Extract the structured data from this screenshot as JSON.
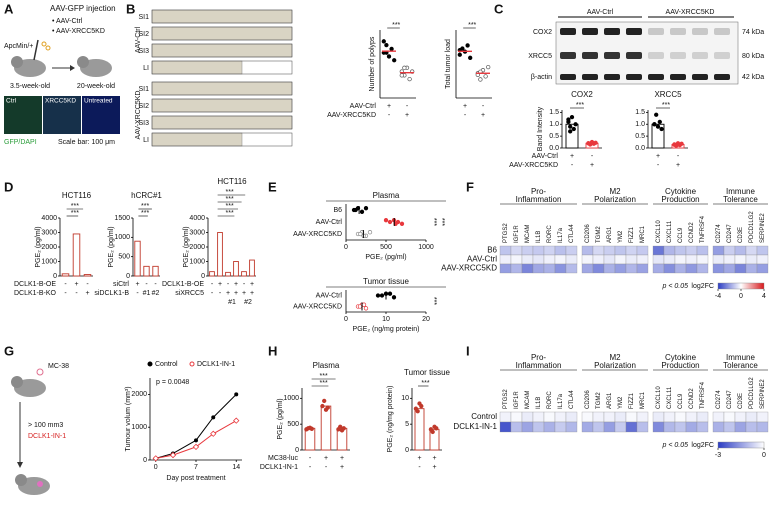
{
  "panel_labels": [
    "A",
    "B",
    "C",
    "D",
    "E",
    "F",
    "G",
    "H",
    "I"
  ],
  "panel_a": {
    "title": "AAV-GFP injection",
    "groups": [
      "• AAV-Ctrl",
      "• AAV-XRCC5KD"
    ],
    "genotype": "ApcMin/+",
    "ages": [
      "3.5-week-old",
      "20-week-old"
    ],
    "images": [
      "Ctrl",
      "XRCC5KD",
      "Untreated"
    ],
    "stain": "GFP/DAPI",
    "scale_bar": "Scale bar: 100 μm"
  },
  "panel_b": {
    "groups": [
      "AAV-Ctrl",
      "AAV-XRCC5KD"
    ],
    "segments": [
      "SI1",
      "SI2",
      "SI3",
      "LI"
    ]
  },
  "panel_c": {
    "groups": [
      "AAV-Ctrl",
      "AAV-XRCC5KD"
    ],
    "bands": [
      {
        "name": "COX2",
        "size": "74 kDa"
      },
      {
        "name": "XRCC5",
        "size": "80 kDa"
      },
      {
        "name": "β-actin",
        "size": "42 kDa"
      }
    ]
  },
  "panel_g": {
    "cell_line": "MC-38",
    "threshold": "> 100 mm3",
    "treatment": "DCLK1-IN-1"
  },
  "chart_data": [
    {
      "type": "dot",
      "ylabel": "Number of polyps",
      "ylim": [
        0,
        18
      ],
      "points": [
        [
          12,
          14,
          11,
          13,
          10,
          15,
          12
        ],
        [
          7,
          6,
          8,
          5,
          7,
          6,
          8
        ]
      ],
      "means": [
        12.4,
        6.7
      ],
      "colors": [
        "#000000",
        "#555555"
      ],
      "hollow": [
        false,
        true
      ],
      "mean_color": "#e8383d",
      "significance": [
        "***"
      ],
      "conditions": [
        {
          "name": "AAV-Ctrl",
          "marks": [
            "+",
            "-"
          ]
        },
        {
          "name": "AAV-XRCC5KD",
          "marks": [
            "-",
            "+"
          ]
        }
      ]
    },
    {
      "type": "dot",
      "ylabel": "Total tumor load",
      "ylim": [
        0,
        220
      ],
      "points": [
        [
          140,
          160,
          150,
          170,
          130,
          155
        ],
        [
          80,
          60,
          90,
          70,
          100,
          75,
          85
        ]
      ],
      "means": [
        151,
        80
      ],
      "colors": [
        "#000000",
        "#555555"
      ],
      "hollow": [
        false,
        true
      ],
      "mean_color": "#e8383d",
      "significance": [
        "***"
      ],
      "conditions": [
        {
          "marks": [
            "+",
            "-"
          ]
        },
        {
          "marks": [
            "-",
            "+"
          ]
        }
      ]
    },
    {
      "type": "bar",
      "title": "COX2",
      "ylabel": "Band Intensity",
      "ylim": [
        0,
        1.6
      ],
      "yticks": [
        {
          "value": 0,
          "label": "0.0"
        },
        0.5,
        {
          "value": 1,
          "label": "1.0"
        },
        1.5
      ],
      "values": [
        1.0,
        0.2
      ],
      "points": [
        [
          1.1,
          0.9,
          1.3,
          0.8,
          1.0,
          1.2,
          0.7
        ],
        [
          0.2,
          0.15,
          0.25,
          0.18,
          0.22,
          0.2
        ]
      ],
      "colors": [
        "#000000",
        "#e8383d"
      ],
      "bar_fill": "#ffffff",
      "significance": [
        "***"
      ],
      "conditions": [
        {
          "name": "AAV-Ctrl",
          "marks": [
            "+",
            "-"
          ]
        },
        {
          "name": "AAV-XRCC5KD",
          "marks": [
            "-",
            "+"
          ]
        }
      ]
    },
    {
      "type": "bar",
      "title": "XRCC5",
      "ylim": [
        0,
        1.6
      ],
      "yticks": [
        {
          "value": 0,
          "label": "0.0"
        },
        0.5,
        {
          "value": 1,
          "label": "1.0"
        },
        1.5
      ],
      "values": [
        1.0,
        0.15
      ],
      "points": [
        [
          1.0,
          1.4,
          0.9,
          1.1,
          0.8,
          1.0
        ],
        [
          0.15,
          0.1,
          0.2,
          0.12,
          0.18,
          0.14
        ]
      ],
      "colors": [
        "#000000",
        "#e8383d"
      ],
      "bar_fill": "#ffffff",
      "significance": [
        "***"
      ],
      "conditions": [
        {
          "marks": [
            "+",
            "-"
          ]
        },
        {
          "marks": [
            "-",
            "+"
          ]
        }
      ]
    },
    {
      "type": "bar",
      "title": "HCT116",
      "ylabel": "PGE₂ (pg/ml)",
      "ylim": [
        0,
        4000
      ],
      "yticks": [
        0,
        1000,
        2000,
        3000,
        4000
      ],
      "values": [
        150,
        2900,
        100
      ],
      "colors": [
        "#c0392b",
        "#c0392b",
        "#c0392b"
      ],
      "bar_fill": "#ffffff",
      "significance": [
        "***",
        "***"
      ],
      "conditions": [
        {
          "name": "DCLK1-B-OE",
          "marks": [
            "-",
            "+",
            "-"
          ]
        },
        {
          "name": "DCLK1-B-KO",
          "marks": [
            "-",
            "-",
            "+"
          ]
        }
      ]
    },
    {
      "type": "bar",
      "title": "hCRC#1",
      "ylabel": "PGE₂ (pg/ml)",
      "ylim": [
        0,
        1500
      ],
      "yticks": [
        0,
        500,
        1000,
        1500
      ],
      "values": [
        900,
        250,
        250
      ],
      "colors": [
        "#c0392b",
        "#c0392b",
        "#c0392b"
      ],
      "bar_fill": "#ffffff",
      "significance": [
        "***",
        "***"
      ],
      "conditions": [
        {
          "name": "siCtrl",
          "marks": [
            "+",
            "-",
            "-"
          ]
        },
        {
          "name": "siDCLK1-B",
          "marks": [
            "-",
            "#1",
            "#2"
          ]
        }
      ]
    },
    {
      "type": "bar",
      "title": "HCT116",
      "ylabel": "PGE₂ (pg/ml)",
      "ylim": [
        0,
        4000
      ],
      "yticks": [
        0,
        1000,
        2000,
        3000,
        4000
      ],
      "values": [
        300,
        3000,
        250,
        1000,
        300,
        1100
      ],
      "colors": [
        "#c0392b",
        "#c0392b",
        "#c0392b",
        "#c0392b",
        "#c0392b",
        "#c0392b"
      ],
      "bar_fill": "#ffffff",
      "significance": [
        "***",
        "***",
        "***",
        "***"
      ],
      "conditions": [
        {
          "name": "DCLK1-B-OE",
          "marks": [
            "-",
            "+",
            "-",
            "+",
            "-",
            "+"
          ]
        },
        {
          "name": "siXRCC5",
          "marks": [
            "-",
            "-",
            "+",
            "+",
            "+",
            "+"
          ]
        }
      ],
      "sublabels": [
        "#1",
        "#2"
      ]
    },
    {
      "type": "hdot",
      "title": "Plasma",
      "categories": [
        "B6",
        "AAV-Ctrl",
        "AAV-XRCC5KD"
      ],
      "xlabel": "PGE₂ (pg/ml)",
      "xlim": [
        0,
        1000
      ],
      "xticks": [
        0,
        500,
        1000
      ],
      "points": [
        [
          150,
          100,
          200,
          250,
          120
        ],
        [
          600,
          550,
          700,
          500,
          650,
          620
        ],
        [
          200,
          150,
          250,
          300,
          180,
          220
        ]
      ],
      "means": [
        164,
        603,
        217
      ],
      "colors": [
        "#000000",
        "#e8383d",
        "#888888"
      ],
      "hollow": [
        false,
        false,
        true
      ],
      "significance": [
        "***",
        "***"
      ]
    },
    {
      "type": "hdot",
      "title": "Tumor tissue",
      "categories": [
        "AAV-Ctrl",
        "AAV-XRCC5KD"
      ],
      "xlabel": "PGE₂ (ng/mg protein)",
      "xlim": [
        0,
        20
      ],
      "xticks": [
        0,
        10,
        20
      ],
      "points": [
        [
          10,
          9,
          12,
          11,
          8
        ],
        [
          4,
          3,
          5,
          4.5,
          3.5
        ]
      ],
      "means": [
        10,
        4
      ],
      "colors": [
        "#000000",
        "#e8383d"
      ],
      "hollow": [
        false,
        true
      ],
      "significance": [
        "***"
      ]
    },
    {
      "type": "heatmap",
      "rows": [
        "B6",
        "AAV-Ctrl",
        "AAV-XRCC5KD"
      ],
      "columns": [
        {
          "name": [
            "Pro-",
            "Inflammation"
          ],
          "genes": [
            "PTGS2",
            "IGF1R",
            "MCAM",
            "IL1B",
            "RORC",
            "IL17a",
            "CTLA4"
          ]
        },
        {
          "name": [
            "M2",
            "Polarization"
          ],
          "genes": [
            "CD206",
            "TGM2",
            "ARG1",
            "YM2",
            "FIZZ1",
            "MRC1"
          ]
        },
        {
          "name": [
            "Cytokine",
            "Production"
          ],
          "genes": [
            "CXCL10",
            "CXCL11",
            "CCL9",
            "CCND2",
            "TNFRSF4"
          ]
        },
        {
          "name": [
            "Immune",
            "Tolerance"
          ],
          "genes": [
            "CD274",
            "CD247",
            "CD3E",
            "PDCD1LG2",
            "SERPINE2"
          ]
        }
      ],
      "values": [
        [
          -1.2,
          -0.8,
          -1.0,
          -1.1,
          -0.9,
          -1.3,
          -1.0,
          -1.4,
          -0.8,
          -1.0,
          -1.2,
          -0.9,
          -1.1,
          -2.8,
          -1.5,
          -1.2,
          -1.0,
          -1.3,
          -2.0,
          -1.0,
          -1.4,
          -0.8,
          -1.2
        ],
        [
          -0.3,
          -0.2,
          -0.4,
          -0.5,
          -0.3,
          -0.2,
          -0.4,
          -0.2,
          -0.3,
          -0.5,
          -0.2,
          -0.4,
          -0.3,
          -0.5,
          -0.4,
          -0.2,
          -0.3,
          -0.2,
          -0.4,
          -0.3,
          -0.2,
          -0.4,
          -0.3
        ],
        [
          -2.0,
          -1.5,
          -2.5,
          -1.8,
          -1.6,
          -2.2,
          -1.4,
          -1.8,
          -2.4,
          -1.6,
          -2.0,
          -1.5,
          -1.9,
          -1.7,
          -2.3,
          -1.6,
          -2.1,
          -1.5,
          -2.2,
          -1.8,
          -2.5,
          -1.6,
          -2.0
        ]
      ],
      "zlim": [
        -4,
        4
      ],
      "zticks": [
        -4,
        0,
        4
      ],
      "colors": [
        "#2b3cc4",
        "#ffffff",
        "#d7191c"
      ],
      "note": "p < 0.05",
      "legend_title": "log2FC"
    },
    {
      "type": "line",
      "ylabel": "Tumour volum (mm³)",
      "xlabel": "Day post treatment",
      "x": [
        0,
        3,
        7,
        10,
        14
      ],
      "xlim": [
        -1,
        15
      ],
      "xticks": [
        0,
        7,
        14
      ],
      "ylim": [
        0,
        2500
      ],
      "yticks": [
        0,
        1000,
        2000
      ],
      "annotation": "p = 0.0048",
      "series": [
        {
          "name": "Control",
          "color": "#000000",
          "values": [
            50,
            200,
            600,
            1300,
            2000
          ]
        },
        {
          "name": "DCLK1-IN-1",
          "color": "#e8383d",
          "values": [
            50,
            150,
            400,
            800,
            1200
          ]
        }
      ]
    },
    {
      "type": "bar",
      "title": "Plasma",
      "ylabel": "PGE₂ (pg/ml)",
      "ylim": [
        0,
        1200
      ],
      "yticks": [
        0,
        500,
        1000
      ],
      "values": [
        420,
        850,
        420
      ],
      "points": [
        [
          400,
          420,
          430,
          410
        ],
        [
          850,
          950,
          780,
          820
        ],
        [
          400,
          450,
          380,
          420
        ]
      ],
      "colors": [
        "#c0392b",
        "#c0392b",
        "#c0392b"
      ],
      "bar_fill": "#ffffff",
      "significance": [
        "***",
        "***"
      ],
      "conditions": [
        {
          "name": "MC38-luc",
          "marks": [
            "-",
            "+",
            "+"
          ]
        },
        {
          "name": "DCLK1-IN-1",
          "marks": [
            "-",
            "-",
            "+"
          ]
        }
      ]
    },
    {
      "type": "bar",
      "title": "Tumor tissue",
      "ylabel": "PGE₂ (ng/mg protein)",
      "ylim": [
        0,
        12
      ],
      "yticks": [
        0,
        5,
        10
      ],
      "values": [
        8,
        4
      ],
      "points": [
        [
          8,
          7.5,
          9,
          8.5
        ],
        [
          4,
          3.5,
          4.5,
          4.2
        ]
      ],
      "colors": [
        "#c0392b",
        "#c0392b"
      ],
      "bar_fill": "#ffffff",
      "significance": [
        "***"
      ],
      "conditions": [
        {
          "marks": [
            "+",
            "+"
          ]
        },
        {
          "marks": [
            "-",
            "+"
          ]
        }
      ]
    },
    {
      "type": "heatmap",
      "rows": [
        "Control",
        "DCLK1-IN-1"
      ],
      "columns": [
        {
          "name": [
            "Pro-",
            "Inflammation"
          ],
          "genes": [
            "PTGS2",
            "IGF1R",
            "MCAM",
            "IL1B",
            "RORC",
            "IL17a",
            "CTLA4"
          ]
        },
        {
          "name": [
            "M2",
            "Polarization"
          ],
          "genes": [
            "CD206",
            "TGM2",
            "ARG1",
            "YM2",
            "FIZZ1",
            "MRC1"
          ]
        },
        {
          "name": [
            "Cytokine",
            "Production"
          ],
          "genes": [
            "CXCL10",
            "CXCL11",
            "CCL9",
            "CCND2",
            "TNFRSF4"
          ]
        },
        {
          "name": [
            "Immune",
            "Tolerance"
          ],
          "genes": [
            "CD274",
            "CD247",
            "CD3E",
            "PDCD1LG2",
            "SERPINE2"
          ]
        }
      ],
      "values": [
        [
          -0.2,
          -0.1,
          -0.3,
          -0.2,
          -0.1,
          -0.2,
          -0.3,
          -0.1,
          -0.2,
          -0.2,
          -0.3,
          -0.1,
          -0.2,
          -0.3,
          -0.2,
          -0.1,
          -0.2,
          -0.3,
          -0.2,
          -0.1,
          -0.2,
          -0.3,
          -0.2
        ],
        [
          -2.6,
          -1.0,
          -1.4,
          -0.9,
          -1.2,
          -0.8,
          -1.1,
          -1.3,
          -0.9,
          -1.5,
          -0.8,
          -2.2,
          -1.0,
          -1.8,
          -1.1,
          -0.9,
          -1.3,
          -1.0,
          -1.2,
          -0.9,
          -1.4,
          -1.0,
          -1.1
        ]
      ],
      "zlim": [
        -3,
        0
      ],
      "zticks": [
        -3,
        0
      ],
      "colors": [
        "#2b3cc4",
        "#ffffff"
      ],
      "note": "p < 0.05",
      "legend_title": "log2FC"
    }
  ]
}
